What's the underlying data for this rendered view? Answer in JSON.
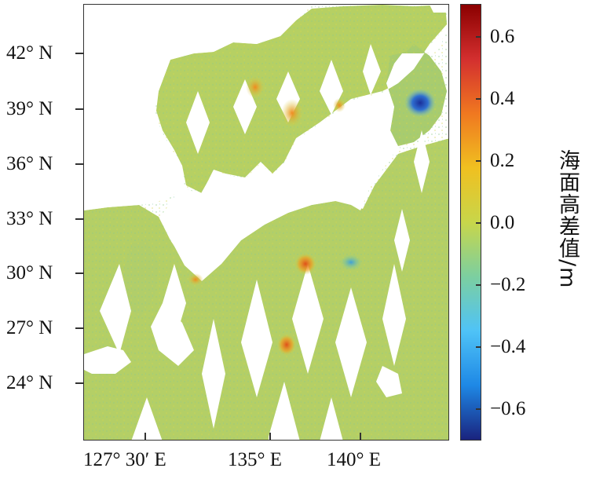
{
  "map": {
    "y_axis_labels": [
      "42° N",
      "39° N",
      "36° N",
      "33° N",
      "30° N",
      "27° N",
      "24° N"
    ],
    "x_axis_labels": [
      "127° 30′ E",
      "135° E",
      "140° E"
    ],
    "colorbar": {
      "title": "海面高差值/m",
      "tick_labels": [
        "0.6",
        "0.4",
        "0.2",
        "0.0",
        "−0.2",
        "−0.4",
        "−0.6"
      ],
      "range": [
        -0.7,
        0.7
      ],
      "colormap": "jet",
      "colors": [
        "#1a237e",
        "#1e88e5",
        "#4fc3f7",
        "#7ccfa0",
        "#c8d64a",
        "#f0c020",
        "#f07820",
        "#d32f2f",
        "#8b0000"
      ]
    },
    "dominant_color": "#b5cf62",
    "hotspot_colors": {
      "positive": "#e8641e",
      "negative": "#1c3fa8"
    }
  }
}
